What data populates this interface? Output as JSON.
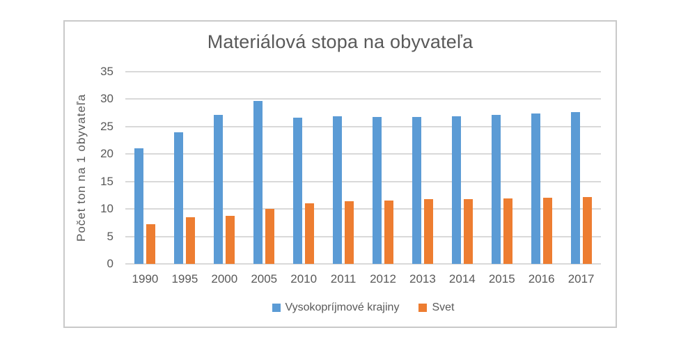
{
  "chart_data": {
    "type": "bar",
    "title": "Materiálová stopa na obyvateľa",
    "xlabel": "",
    "ylabel": "Počet ton na 1 obyvateľa",
    "ylim": [
      0,
      35
    ],
    "yticks": [
      0,
      5,
      10,
      15,
      20,
      25,
      30,
      35
    ],
    "grid": true,
    "legend_position": "bottom",
    "categories": [
      "1990",
      "1995",
      "2000",
      "2005",
      "2010",
      "2011",
      "2012",
      "2013",
      "2014",
      "2015",
      "2016",
      "2017"
    ],
    "series": [
      {
        "name": "Vysokopríjmové krajiny",
        "color": "#5B9BD5",
        "values": [
          21.1,
          24.0,
          27.2,
          29.7,
          26.6,
          26.9,
          26.8,
          26.8,
          26.9,
          27.1,
          27.4,
          27.7
        ]
      },
      {
        "name": "Svet",
        "color": "#ED7D31",
        "values": [
          7.2,
          8.5,
          8.8,
          10.0,
          11.0,
          11.4,
          11.6,
          11.8,
          11.8,
          11.9,
          12.1,
          12.2
        ]
      }
    ],
    "colors": {
      "gridline": "#D9D9D9",
      "text": "#595959",
      "box_border": "#C9C9C9",
      "background": "#FFFFFF"
    }
  }
}
